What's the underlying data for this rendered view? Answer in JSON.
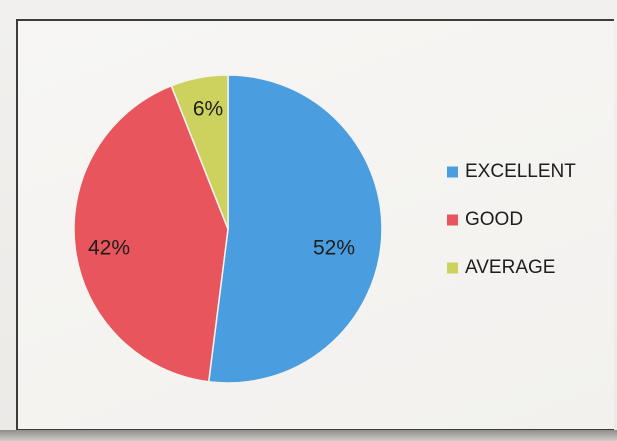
{
  "chart_data": {
    "type": "pie",
    "categories": [
      "EXCELLENT",
      "GOOD",
      "AVERAGE"
    ],
    "values": [
      52,
      42,
      6
    ],
    "labels": [
      "52%",
      "42%",
      "6%"
    ],
    "colors": [
      "#4a9ee0",
      "#e8555c",
      "#cdd25e"
    ],
    "start": "12 o'clock",
    "direction": "clockwise",
    "legend_position": "right"
  }
}
